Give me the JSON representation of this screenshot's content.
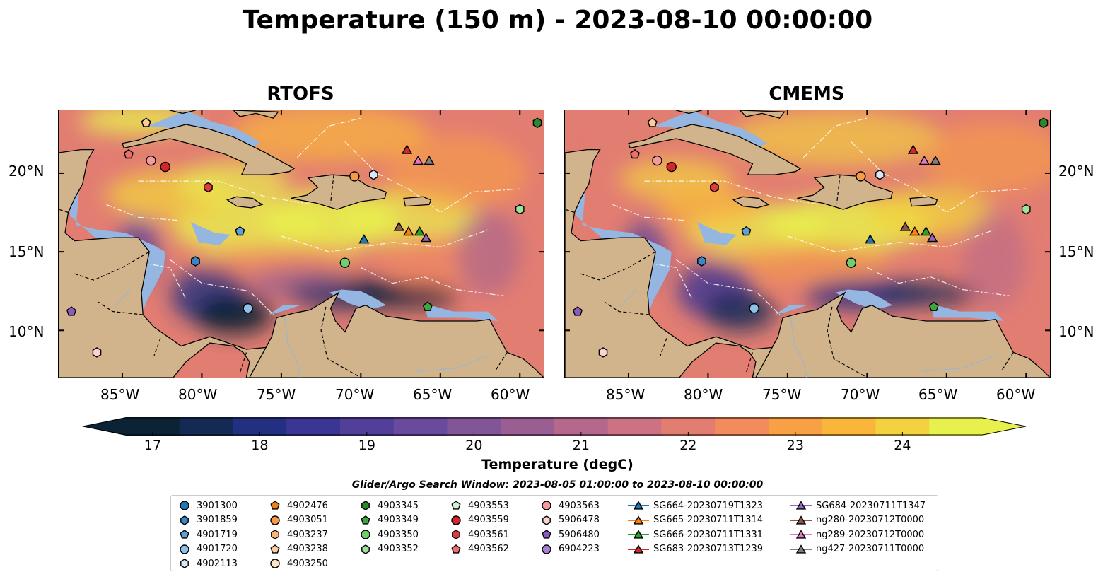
{
  "title": "Temperature (150 m) - 2023-08-10 00:00:00",
  "panels": [
    {
      "name": "RTOFS"
    },
    {
      "name": "CMEMS"
    }
  ],
  "axes": {
    "lat_ticks": [
      "20°N",
      "15°N",
      "10°N"
    ],
    "lon_ticks": [
      "85°W",
      "80°W",
      "75°W",
      "70°W",
      "65°W",
      "60°W"
    ],
    "lon_range": [
      -89,
      -58.5
    ],
    "lat_range": [
      7,
      24
    ]
  },
  "colorbar": {
    "label": "Temperature (degC)",
    "ticks": [
      "17",
      "18",
      "19",
      "20",
      "21",
      "22",
      "23",
      "24"
    ],
    "range": [
      16.75,
      24.75
    ],
    "extend": "both",
    "colors": [
      "#0b2334",
      "#142a55",
      "#232f80",
      "#3b3694",
      "#523f9a",
      "#6a4a9c",
      "#825598",
      "#9b5e93",
      "#b5688c",
      "#cd7283",
      "#e27d72",
      "#f28c5c",
      "#f8a045",
      "#f9b63b",
      "#f2d23e",
      "#e8f04e"
    ]
  },
  "search_window": "Glider/Argo Search Window: 2023-08-05 01:00:00 to 2023-08-10 00:00:00",
  "map_colors": {
    "land": "#d2b48c",
    "shallow": "#94b6e0"
  },
  "legend": [
    [
      {
        "label": "3901300",
        "marker": "circle",
        "color": "#1f77b4"
      },
      {
        "label": "3901859",
        "marker": "hexagon",
        "color": "#3b86c6"
      },
      {
        "label": "4901719",
        "marker": "pentagon",
        "color": "#5ea0d8"
      },
      {
        "label": "4901720",
        "marker": "circle",
        "color": "#8fc0e8"
      },
      {
        "label": "4902113",
        "marker": "hexagon",
        "color": "#d5e9f7"
      }
    ],
    [
      {
        "label": "4902476",
        "marker": "pentagon",
        "color": "#f07f18"
      },
      {
        "label": "4903051",
        "marker": "circle",
        "color": "#f79a45"
      },
      {
        "label": "4903237",
        "marker": "hexagon",
        "color": "#fbb577"
      },
      {
        "label": "4903238",
        "marker": "pentagon",
        "color": "#fdcb9c"
      },
      {
        "label": "4903250",
        "marker": "circle",
        "color": "#fde4c8"
      }
    ],
    [
      {
        "label": "4903345",
        "marker": "hexagon",
        "color": "#2a8a2a"
      },
      {
        "label": "4903349",
        "marker": "pentagon",
        "color": "#3fa63f"
      },
      {
        "label": "4903350",
        "marker": "circle",
        "color": "#6fcf6f"
      },
      {
        "label": "4903352",
        "marker": "hexagon",
        "color": "#9ee29e"
      }
    ],
    [
      {
        "label": "4903553",
        "marker": "pentagon",
        "color": "#cff5cf"
      },
      {
        "label": "4903559",
        "marker": "circle",
        "color": "#d62728"
      },
      {
        "label": "4903561",
        "marker": "hexagon",
        "color": "#e23b3b"
      },
      {
        "label": "4903562",
        "marker": "pentagon",
        "color": "#ee6e6e"
      }
    ],
    [
      {
        "label": "4903563",
        "marker": "circle",
        "color": "#f49a9a"
      },
      {
        "label": "5906478",
        "marker": "hexagon",
        "color": "#fcd3d3"
      },
      {
        "label": "5906480",
        "marker": "pentagon",
        "color": "#8a5cc2"
      },
      {
        "label": "6904223",
        "marker": "circle",
        "color": "#a47fd2"
      }
    ],
    [
      {
        "label": "SG664-20230719T1323",
        "marker": "triangle",
        "color": "#1f77b4"
      },
      {
        "label": "SG665-20230711T1314",
        "marker": "triangle",
        "color": "#ff7f0e"
      },
      {
        "label": "SG666-20230711T1331",
        "marker": "triangle",
        "color": "#2ca02c"
      },
      {
        "label": "SG683-20230713T1239",
        "marker": "triangle",
        "color": "#d62728"
      }
    ],
    [
      {
        "label": "SG684-20230711T1347",
        "marker": "triangle",
        "color": "#9467bd"
      },
      {
        "label": "ng280-20230712T0000",
        "marker": "triangle",
        "color": "#8c564b"
      },
      {
        "label": "ng289-20230712T0000",
        "marker": "triangle",
        "color": "#e377c2"
      },
      {
        "label": "ng427-20230711T0000",
        "marker": "triangle",
        "color": "#7f7f7f"
      }
    ]
  ],
  "platforms": [
    {
      "lon": -84.6,
      "lat": 21.2,
      "marker": "pentagon",
      "color": "#ee6e6e"
    },
    {
      "lon": -83.2,
      "lat": 20.8,
      "marker": "circle",
      "color": "#f49a9a"
    },
    {
      "lon": -82.3,
      "lat": 20.4,
      "marker": "circle",
      "color": "#d62728"
    },
    {
      "lon": -79.6,
      "lat": 19.1,
      "marker": "hexagon",
      "color": "#e23b3b"
    },
    {
      "lon": -77.6,
      "lat": 16.3,
      "marker": "pentagon",
      "color": "#5ea0d8"
    },
    {
      "lon": -80.4,
      "lat": 14.4,
      "marker": "hexagon",
      "color": "#3b86c6"
    },
    {
      "lon": -77.1,
      "lat": 11.4,
      "marker": "circle",
      "color": "#8fc0e8"
    },
    {
      "lon": -70.4,
      "lat": 19.8,
      "marker": "circle",
      "color": "#f79a45"
    },
    {
      "lon": -69.2,
      "lat": 19.9,
      "marker": "hexagon",
      "color": "#d5e9f7"
    },
    {
      "lon": -71.0,
      "lat": 14.3,
      "marker": "circle",
      "color": "#6fcf6f"
    },
    {
      "lon": -65.8,
      "lat": 11.5,
      "marker": "pentagon",
      "color": "#3fa63f"
    },
    {
      "lon": -58.9,
      "lat": 23.2,
      "marker": "hexagon",
      "color": "#2a8a2a"
    },
    {
      "lon": -60.0,
      "lat": 17.7,
      "marker": "hexagon",
      "color": "#9ee29e"
    },
    {
      "lon": -83.5,
      "lat": 23.2,
      "marker": "pentagon",
      "color": "#fdcb9c"
    },
    {
      "lon": -88.2,
      "lat": 11.2,
      "marker": "pentagon",
      "color": "#8a5cc2"
    },
    {
      "lon": -86.6,
      "lat": 8.6,
      "marker": "hexagon",
      "color": "#fcd3d3"
    },
    {
      "lon": -69.8,
      "lat": 15.8,
      "marker": "triangle",
      "color": "#1f77b4"
    },
    {
      "lon": -67.0,
      "lat": 16.3,
      "marker": "triangle",
      "color": "#ff7f0e"
    },
    {
      "lon": -66.3,
      "lat": 16.3,
      "marker": "triangle",
      "color": "#2ca02c"
    },
    {
      "lon": -67.1,
      "lat": 21.5,
      "marker": "triangle",
      "color": "#d62728"
    },
    {
      "lon": -65.9,
      "lat": 15.9,
      "marker": "triangle",
      "color": "#9467bd"
    },
    {
      "lon": -67.6,
      "lat": 16.6,
      "marker": "triangle",
      "color": "#8c564b"
    },
    {
      "lon": -66.4,
      "lat": 20.8,
      "marker": "triangle",
      "color": "#e377c2"
    },
    {
      "lon": -65.7,
      "lat": 20.8,
      "marker": "triangle",
      "color": "#7f7f7f"
    }
  ]
}
